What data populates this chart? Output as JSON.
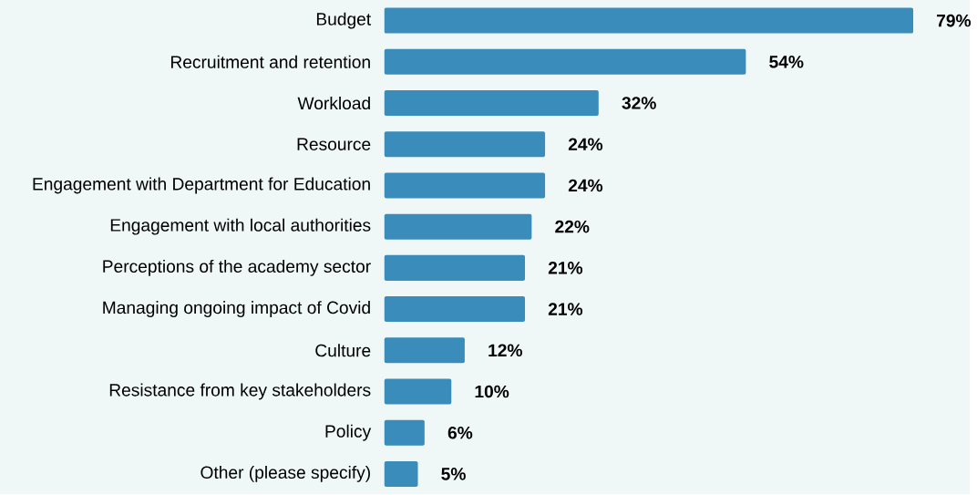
{
  "chart_data": {
    "type": "bar",
    "orientation": "horizontal",
    "color": "#3a8dba",
    "categories": [
      "Budget",
      "Recruitment and retention",
      "Workload",
      "Resource",
      "Engagement with Department for Education",
      "Engagement with local authorities",
      "Perceptions of the academy sector",
      "Managing ongoing impact of Covid",
      "Culture",
      "Resistance from key stakeholders",
      "Policy",
      "Other (please specify)"
    ],
    "values": [
      79,
      54,
      32,
      24,
      24,
      22,
      21,
      21,
      12,
      10,
      6,
      5
    ],
    "value_labels": [
      "79%",
      "54%",
      "32%",
      "24%",
      "24%",
      "22%",
      "21%",
      "21%",
      "12%",
      "10%",
      "6%",
      "5%"
    ]
  }
}
